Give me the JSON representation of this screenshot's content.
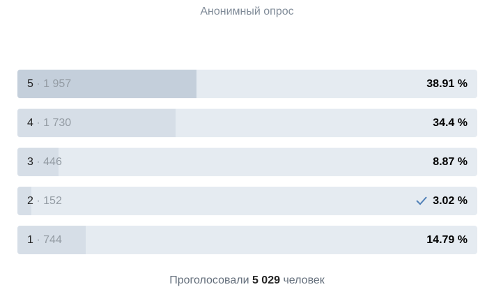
{
  "header": {
    "subtitle": "Анонимный опрос"
  },
  "separator": "·",
  "options": [
    {
      "label": "5",
      "count": "1 957",
      "percent": {
        "value": 38.91,
        "label": "38.91 %"
      },
      "leader": true,
      "selected": false
    },
    {
      "label": "4",
      "count": "1 730",
      "percent": {
        "value": 34.4,
        "label": "34.4 %"
      },
      "leader": false,
      "selected": false
    },
    {
      "label": "3",
      "count": "446",
      "percent": {
        "value": 8.87,
        "label": "8.87 %"
      },
      "leader": false,
      "selected": false
    },
    {
      "label": "2",
      "count": "152",
      "percent": {
        "value": 3.02,
        "label": "3.02 %"
      },
      "leader": false,
      "selected": true
    },
    {
      "label": "1",
      "count": "744",
      "percent": {
        "value": 14.79,
        "label": "14.79 %"
      },
      "leader": false,
      "selected": false
    }
  ],
  "footer": {
    "prefix": "Проголосовали",
    "total": "5 029",
    "suffix": "человек"
  }
}
